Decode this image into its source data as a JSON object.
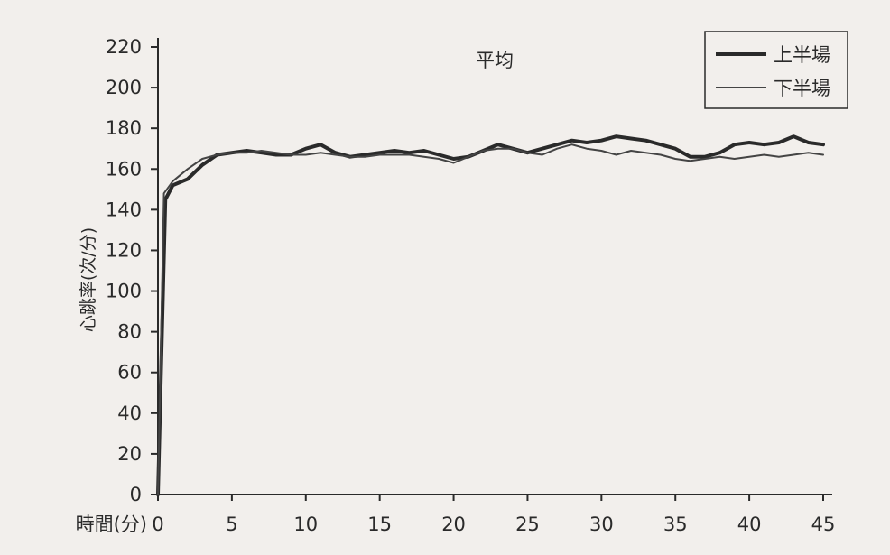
{
  "chart_data": {
    "type": "line",
    "title": "平均",
    "xlabel": "時間(分)",
    "ylabel": "心跳率(次/分)",
    "xlim": [
      0,
      45
    ],
    "ylim": [
      0,
      220
    ],
    "x_ticks": [
      0,
      5,
      10,
      15,
      20,
      25,
      30,
      35,
      40,
      45
    ],
    "y_ticks": [
      0,
      20,
      40,
      60,
      80,
      100,
      120,
      140,
      160,
      180,
      200,
      220
    ],
    "grid": false,
    "legend_position": "top-right",
    "series": [
      {
        "name": "上半場",
        "style": "thick",
        "color": "#2a2a2a",
        "points": [
          [
            0,
            0
          ],
          [
            0.5,
            145
          ],
          [
            1,
            152
          ],
          [
            2,
            155
          ],
          [
            3,
            162
          ],
          [
            4,
            167
          ],
          [
            5,
            168
          ],
          [
            6,
            169
          ],
          [
            7,
            168
          ],
          [
            8,
            167
          ],
          [
            9,
            167
          ],
          [
            10,
            170
          ],
          [
            11,
            172
          ],
          [
            12,
            168
          ],
          [
            13,
            166
          ],
          [
            14,
            167
          ],
          [
            15,
            168
          ],
          [
            16,
            169
          ],
          [
            17,
            168
          ],
          [
            18,
            169
          ],
          [
            19,
            167
          ],
          [
            20,
            165
          ],
          [
            21,
            166
          ],
          [
            22,
            169
          ],
          [
            23,
            172
          ],
          [
            24,
            170
          ],
          [
            25,
            168
          ],
          [
            26,
            170
          ],
          [
            27,
            172
          ],
          [
            28,
            174
          ],
          [
            29,
            173
          ],
          [
            30,
            174
          ],
          [
            31,
            176
          ],
          [
            32,
            175
          ],
          [
            33,
            174
          ],
          [
            34,
            172
          ],
          [
            35,
            170
          ],
          [
            36,
            166
          ],
          [
            37,
            166
          ],
          [
            38,
            168
          ],
          [
            39,
            172
          ],
          [
            40,
            173
          ],
          [
            41,
            172
          ],
          [
            42,
            173
          ],
          [
            43,
            176
          ],
          [
            44,
            173
          ],
          [
            45,
            172
          ]
        ]
      },
      {
        "name": "下半場",
        "style": "thin",
        "color": "#444444",
        "points": [
          [
            0,
            0
          ],
          [
            0.4,
            148
          ],
          [
            1,
            154
          ],
          [
            2,
            160
          ],
          [
            3,
            165
          ],
          [
            4,
            167
          ],
          [
            5,
            168
          ],
          [
            6,
            168
          ],
          [
            7,
            169
          ],
          [
            8,
            168
          ],
          [
            9,
            167
          ],
          [
            10,
            167
          ],
          [
            11,
            168
          ],
          [
            12,
            167
          ],
          [
            13,
            166
          ],
          [
            14,
            166
          ],
          [
            15,
            167
          ],
          [
            16,
            167
          ],
          [
            17,
            167
          ],
          [
            18,
            166
          ],
          [
            19,
            165
          ],
          [
            20,
            163
          ],
          [
            21,
            166
          ],
          [
            22,
            169
          ],
          [
            23,
            170
          ],
          [
            24,
            170
          ],
          [
            25,
            168
          ],
          [
            26,
            167
          ],
          [
            27,
            170
          ],
          [
            28,
            172
          ],
          [
            29,
            170
          ],
          [
            30,
            169
          ],
          [
            31,
            167
          ],
          [
            32,
            169
          ],
          [
            33,
            168
          ],
          [
            34,
            167
          ],
          [
            35,
            165
          ],
          [
            36,
            164
          ],
          [
            37,
            165
          ],
          [
            38,
            166
          ],
          [
            39,
            165
          ],
          [
            40,
            166
          ],
          [
            41,
            167
          ],
          [
            42,
            166
          ],
          [
            43,
            167
          ],
          [
            44,
            168
          ],
          [
            45,
            167
          ]
        ]
      }
    ]
  }
}
